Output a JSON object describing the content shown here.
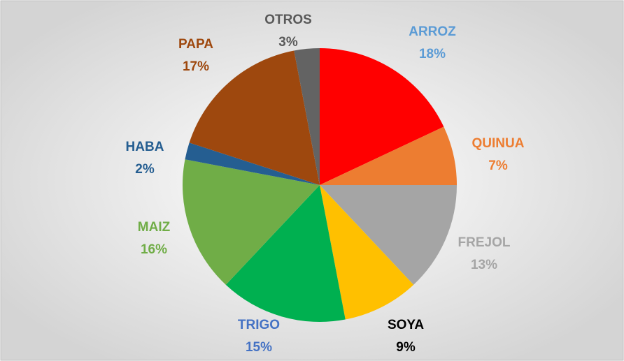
{
  "chart_data": {
    "type": "pie",
    "categories": [
      "ARROZ",
      "QUINUA",
      "FREJOL",
      "SOYA",
      "TRIGO",
      "MAIZ",
      "HABA",
      "PAPA",
      "OTROS"
    ],
    "values": [
      18,
      7,
      13,
      9,
      15,
      16,
      2,
      17,
      3
    ],
    "value_labels": [
      "18%",
      "7%",
      "13%",
      "9%",
      "15%",
      "16%",
      "2%",
      "17%",
      "3%"
    ],
    "colors": [
      "#ff0000",
      "#ed7d31",
      "#a5a5a5",
      "#ffc000",
      "#00b050",
      "#70ad47",
      "#255e91",
      "#9e480e",
      "#636363"
    ],
    "label_colors": [
      "#5b9bd5",
      "#ed7d31",
      "#a5a5a5",
      "#000000",
      "#4472c4",
      "#70ad47",
      "#255e91",
      "#9e480e",
      "#595959"
    ]
  }
}
